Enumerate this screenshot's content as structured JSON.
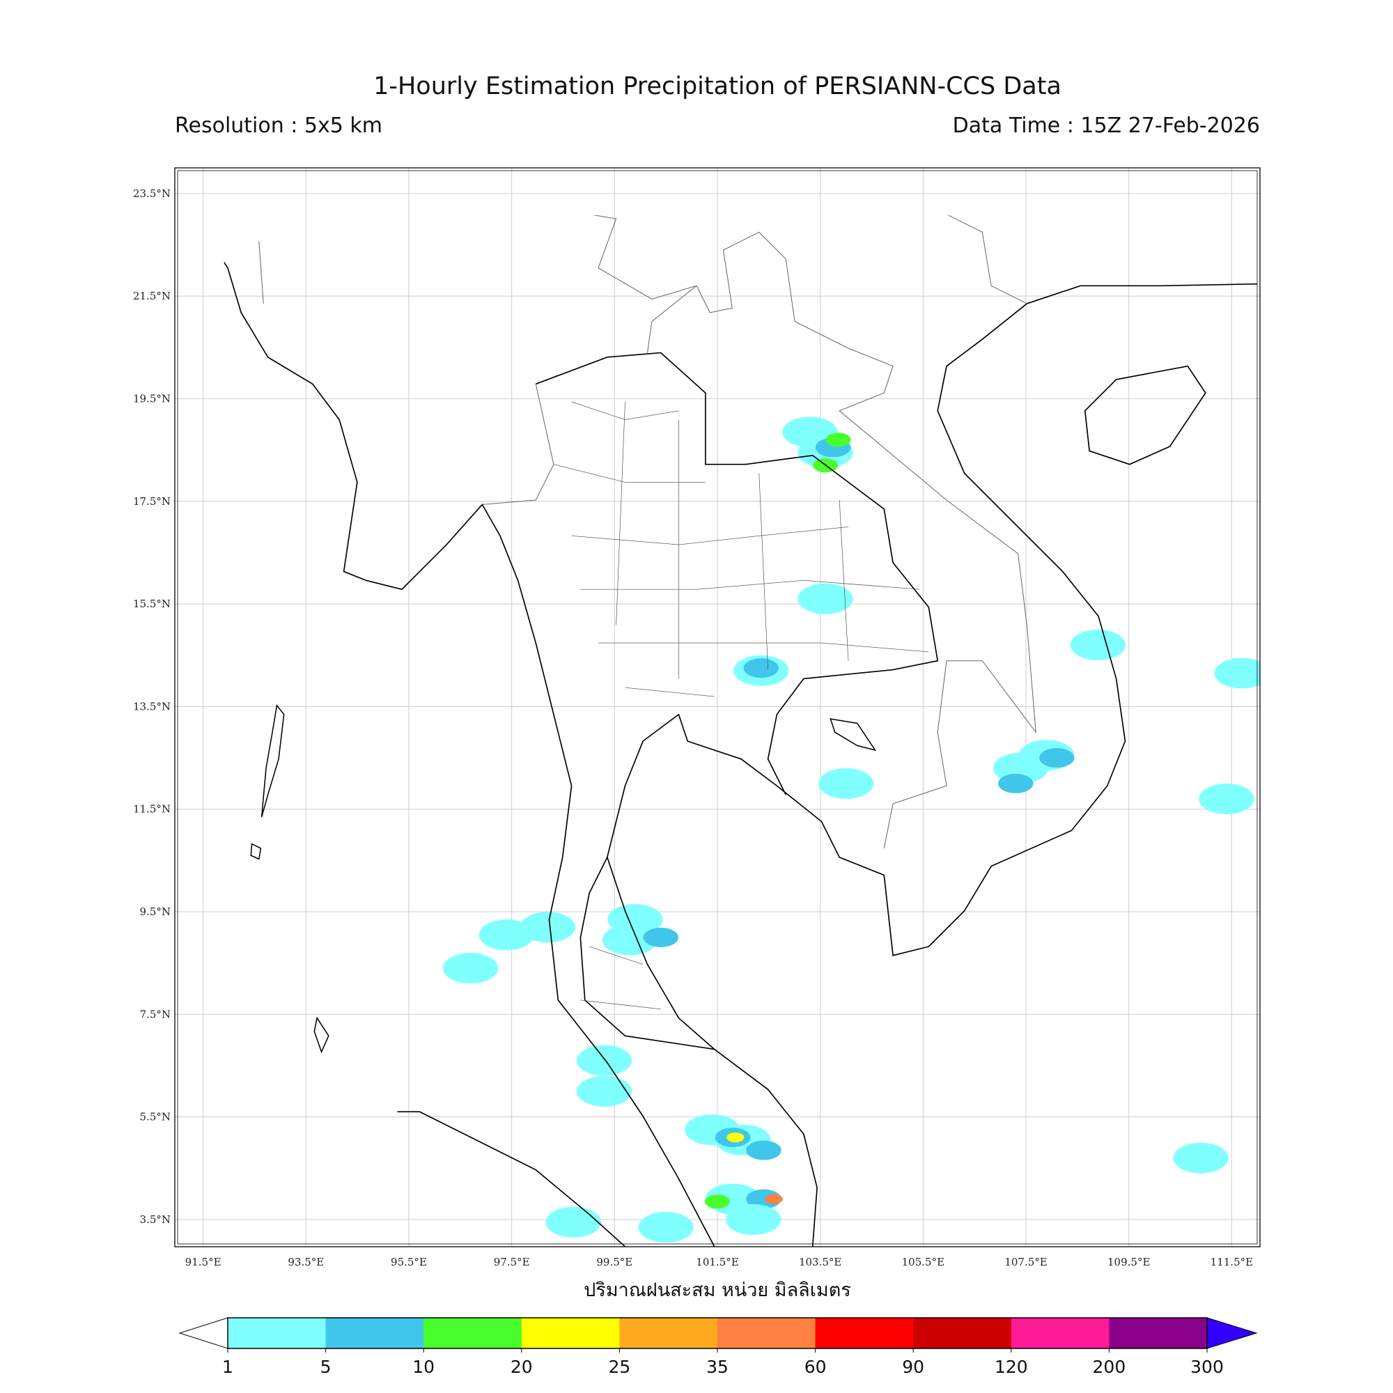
{
  "title": "1-Hourly Estimation Precipitation of PERSIANN-CCS Data",
  "resolution": "Resolution : 5x5 km",
  "data_time": "Data Time : 15Z 27-Feb-2026",
  "xlabel": "ปริมาณฝนสะสม หน่วย มิลลิเมตร",
  "chart_data": {
    "type": "heatmap",
    "extent": {
      "lon": [
        90.95,
        112.05
      ],
      "lat": [
        2.97,
        24.0
      ]
    },
    "grid": true,
    "lon_ticks": [
      "91.5°E",
      "93.5°E",
      "95.5°E",
      "97.5°E",
      "99.5°E",
      "101.5°E",
      "103.5°E",
      "105.5°E",
      "107.5°E",
      "109.5°E",
      "111.5°E"
    ],
    "lat_ticks": [
      "23.5°N",
      "21.5°N",
      "19.5°N",
      "17.5°N",
      "15.5°N",
      "13.5°N",
      "11.5°N",
      "9.5°N",
      "7.5°N",
      "5.5°N",
      "3.5°N"
    ],
    "colorbar": {
      "levels": [
        "1",
        "5",
        "10",
        "20",
        "25",
        "35",
        "60",
        "90",
        "120",
        "200",
        "300"
      ],
      "colors": [
        "#80ffff",
        "#3fc6ea",
        "#48ff2b",
        "#ffff00",
        "#ffa91f",
        "#ff8040",
        "#ff0000",
        "#cc0000",
        "#ff1a96",
        "#8b008b"
      ],
      "under_color": "#ffffff",
      "over_color": "#3300ff"
    },
    "rain_cells": [
      {
        "lon": 103.6,
        "lat": 18.45,
        "mm": 3
      },
      {
        "lon": 103.3,
        "lat": 18.85,
        "mm": 2
      },
      {
        "lon": 103.75,
        "lat": 18.55,
        "mm": 8
      },
      {
        "lon": 103.85,
        "lat": 18.7,
        "mm": 12
      },
      {
        "lon": 103.6,
        "lat": 18.2,
        "mm": 12
      },
      {
        "lon": 102.35,
        "lat": 14.2,
        "mm": 3
      },
      {
        "lon": 102.35,
        "lat": 14.25,
        "mm": 7
      },
      {
        "lon": 107.4,
        "lat": 12.3,
        "mm": 3
      },
      {
        "lon": 107.9,
        "lat": 12.55,
        "mm": 3
      },
      {
        "lon": 108.1,
        "lat": 12.5,
        "mm": 7
      },
      {
        "lon": 107.3,
        "lat": 12.0,
        "mm": 6
      },
      {
        "lon": 101.4,
        "lat": 5.25,
        "mm": 2
      },
      {
        "lon": 102.0,
        "lat": 5.05,
        "mm": 4
      },
      {
        "lon": 101.8,
        "lat": 5.1,
        "mm": 8
      },
      {
        "lon": 101.85,
        "lat": 5.1,
        "mm": 22
      },
      {
        "lon": 102.4,
        "lat": 4.85,
        "mm": 7
      },
      {
        "lon": 101.8,
        "lat": 3.9,
        "mm": 4
      },
      {
        "lon": 102.4,
        "lat": 3.9,
        "mm": 7
      },
      {
        "lon": 101.5,
        "lat": 3.85,
        "mm": 12
      },
      {
        "lon": 102.6,
        "lat": 3.9,
        "mm": 40
      },
      {
        "lon": 102.2,
        "lat": 3.5,
        "mm": 2
      },
      {
        "lon": 98.7,
        "lat": 3.45,
        "mm": 2
      },
      {
        "lon": 100.5,
        "lat": 3.35,
        "mm": 2
      },
      {
        "lon": 98.2,
        "lat": 9.2,
        "mm": 3
      },
      {
        "lon": 99.8,
        "lat": 8.95,
        "mm": 3
      },
      {
        "lon": 99.9,
        "lat": 9.35,
        "mm": 2
      },
      {
        "lon": 97.4,
        "lat": 9.05,
        "mm": 2
      },
      {
        "lon": 96.7,
        "lat": 8.4,
        "mm": 2
      },
      {
        "lon": 100.4,
        "lat": 9.0,
        "mm": 6
      },
      {
        "lon": 103.6,
        "lat": 15.6,
        "mm": 2
      },
      {
        "lon": 110.9,
        "lat": 4.7,
        "mm": 2
      },
      {
        "lon": 111.4,
        "lat": 11.7,
        "mm": 2
      },
      {
        "lon": 111.7,
        "lat": 14.15,
        "mm": 2
      },
      {
        "lon": 108.9,
        "lat": 14.7,
        "mm": 2
      },
      {
        "lon": 99.3,
        "lat": 6.6,
        "mm": 2
      },
      {
        "lon": 99.3,
        "lat": 6.0,
        "mm": 2
      },
      {
        "lon": 104.0,
        "lat": 12.0,
        "mm": 2
      }
    ]
  }
}
